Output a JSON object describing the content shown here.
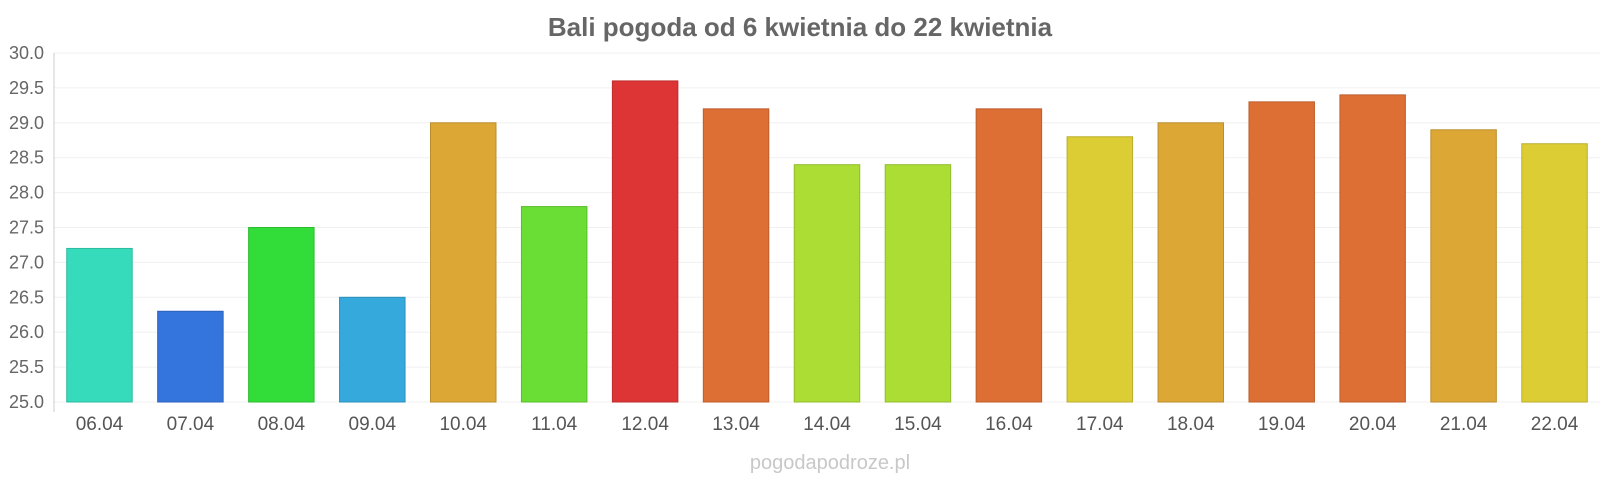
{
  "chart_data": {
    "type": "bar",
    "title": "Bali pogoda od 6 kwietnia do 22 kwietnia",
    "xlabel": "",
    "ylabel": "",
    "ylim": [
      25.0,
      30.0
    ],
    "yticks": [
      "25.0",
      "25.5",
      "26.0",
      "26.5",
      "27.0",
      "27.5",
      "28.0",
      "28.5",
      "29.0",
      "29.5",
      "30.0"
    ],
    "grid": true,
    "legend": "none",
    "categories": [
      "06.04",
      "07.04",
      "08.04",
      "09.04",
      "10.04",
      "11.04",
      "12.04",
      "13.04",
      "14.04",
      "15.04",
      "16.04",
      "17.04",
      "18.04",
      "19.04",
      "20.04",
      "21.04",
      "22.04"
    ],
    "values": [
      27.2,
      26.3,
      27.5,
      26.5,
      29.0,
      27.8,
      29.6,
      29.2,
      28.4,
      28.4,
      29.2,
      28.8,
      29.0,
      29.3,
      29.4,
      28.9,
      28.7
    ],
    "colors": [
      "#36dbbb",
      "#3474dd",
      "#32dd3a",
      "#35a8dc",
      "#dca735",
      "#6ade35",
      "#dd3535",
      "#dd6f35",
      "#abdd35",
      "#abdd35",
      "#dd6f35",
      "#dccd35",
      "#dca735",
      "#dd6f35",
      "#dd6f35",
      "#dca735",
      "#dccd35"
    ]
  },
  "watermark": "pogodapodroze.pl"
}
